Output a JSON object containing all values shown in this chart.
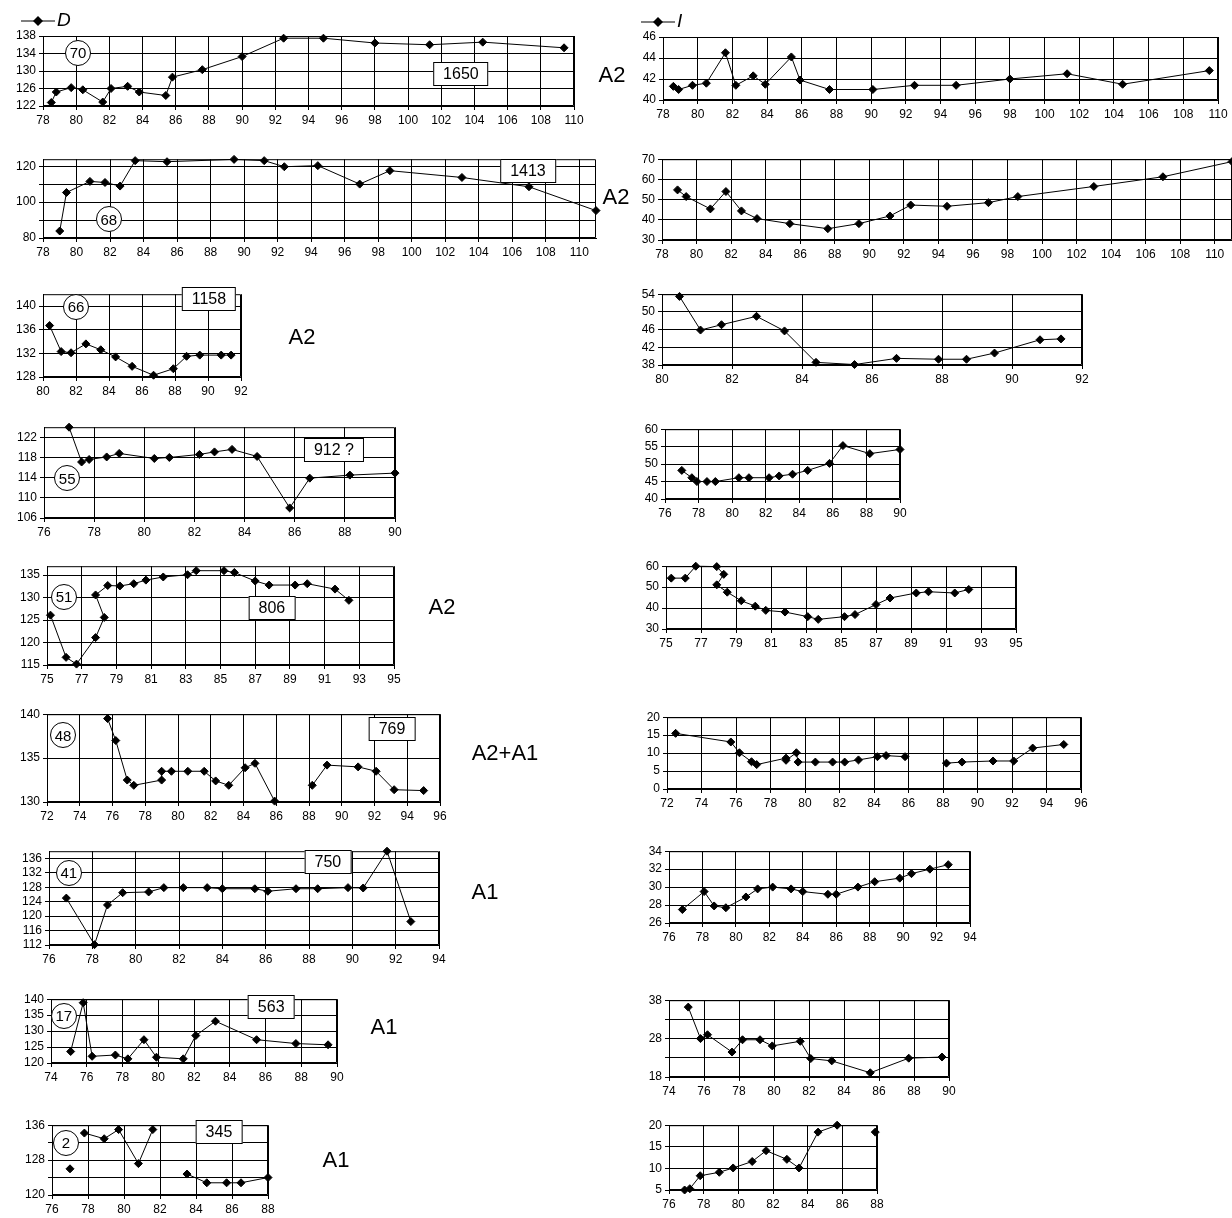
{
  "chart_data": [
    {
      "type": "line",
      "x": [
        78.5,
        78.8,
        79.7,
        80.4,
        81.6,
        82.1,
        83.1,
        83.8,
        85.4,
        85.8,
        87.6,
        90.0,
        92.5,
        94.9,
        98.0,
        101.3,
        104.5,
        109.4
      ],
      "series": [
        {
          "name": "D",
          "color": "#000000",
          "values": [
            122.8,
            125.2,
            126.2,
            125.7,
            122.9,
            126.0,
            126.5,
            125.2,
            124.4,
            128.6,
            130.3,
            133.3,
            137.5,
            137.5,
            136.4,
            136.0,
            136.6,
            135.3
          ]
        }
      ],
      "xlim": [
        78,
        110
      ],
      "xticks": [
        78,
        80,
        82,
        84,
        86,
        88,
        90,
        92,
        94,
        96,
        98,
        100,
        102,
        104,
        106,
        108,
        110
      ],
      "ylim": [
        122,
        138
      ],
      "yticks": [
        122,
        126,
        130,
        134,
        138
      ],
      "grid": true,
      "marker": "diamond",
      "legend": "top left",
      "annotations": [
        "70",
        "1650",
        "A2"
      ]
    },
    {
      "type": "line",
      "x": [
        78.6,
        78.9,
        79.7,
        80.5,
        81.6,
        82.2,
        83.2,
        83.9,
        85.4,
        85.9,
        87.6,
        90.1,
        92.5,
        94.9,
        98.0,
        101.3,
        104.5,
        109.5
      ],
      "series": [
        {
          "name": "I",
          "color": "#000000",
          "values": [
            41.3,
            41.0,
            41.4,
            41.6,
            44.5,
            41.4,
            42.3,
            41.5,
            44.1,
            41.9,
            41.0,
            41.0,
            41.4,
            41.4,
            42.0,
            42.5,
            41.5,
            42.8
          ]
        }
      ],
      "xlim": [
        78,
        110
      ],
      "xticks": [
        78,
        80,
        82,
        84,
        86,
        88,
        90,
        92,
        94,
        96,
        98,
        100,
        102,
        104,
        106,
        108,
        110
      ],
      "ylim": [
        40,
        46
      ],
      "yticks": [
        40,
        42,
        44,
        46
      ],
      "grid": true,
      "marker": "diamond",
      "legend": "top left"
    },
    {
      "type": "line",
      "x": [
        79.0,
        79.4,
        80.8,
        81.7,
        82.6,
        83.5,
        85.4,
        89.4,
        91.2,
        92.4,
        94.4,
        96.9,
        98.7,
        103.0,
        107.0,
        111.0
      ],
      "series": [
        {
          "color": "#000000",
          "values": [
            83.9,
            105.4,
            111.6,
            111.0,
            109.0,
            123.2,
            122.6,
            123.9,
            123.2,
            119.8,
            120.4,
            110.1,
            117.6,
            113.8,
            108.6,
            95.3
          ]
        }
      ],
      "xlim": [
        78,
        111
      ],
      "xticks": [
        78,
        80,
        82,
        84,
        86,
        88,
        90,
        92,
        94,
        96,
        98,
        100,
        102,
        104,
        106,
        108,
        110
      ],
      "ylim": [
        80,
        124
      ],
      "yticks": [
        80,
        {
          "value": 90,
          "label": null
        },
        100,
        {
          "value": 110,
          "label": null
        },
        120
      ],
      "grid": true,
      "marker": "diamond",
      "annotations": [
        "68",
        "1413",
        "A2"
      ]
    },
    {
      "type": "line",
      "x": [
        78.9,
        79.4,
        80.8,
        81.7,
        82.6,
        83.5,
        85.4,
        87.6,
        89.4,
        91.2,
        92.4,
        94.5,
        96.9,
        98.6,
        103.0,
        107.0,
        111.0
      ],
      "series": [
        {
          "color": "#000000",
          "values": [
            54.8,
            51.5,
            45.4,
            54.0,
            44.4,
            40.6,
            38.1,
            35.6,
            38.1,
            41.9,
            47.3,
            46.7,
            48.5,
            51.5,
            56.5,
            61.3,
            68.8
          ]
        }
      ],
      "xlim": [
        78,
        111
      ],
      "xticks": [
        78,
        80,
        82,
        84,
        86,
        88,
        90,
        92,
        94,
        96,
        98,
        100,
        102,
        104,
        106,
        108,
        110
      ],
      "ylim": [
        30,
        70
      ],
      "yticks": [
        30,
        40,
        50,
        60,
        70
      ],
      "grid": true,
      "marker": "diamond"
    },
    {
      "type": "line",
      "x": [
        80.4,
        81.1,
        81.7,
        82.6,
        83.5,
        84.4,
        85.4,
        86.7,
        87.9,
        88.7,
        89.5,
        90.8,
        91.4
      ],
      "series": [
        {
          "color": "#000000",
          "values": [
            136.7,
            132.3,
            132.1,
            133.6,
            132.6,
            131.4,
            129.8,
            128.3,
            129.4,
            131.5,
            131.7,
            131.7,
            131.7
          ]
        }
      ],
      "xlim": [
        80,
        92
      ],
      "xticks": [
        80,
        82,
        84,
        86,
        88,
        90,
        92
      ],
      "ylim": [
        128,
        142
      ],
      "yticks": [
        128,
        132,
        136,
        140
      ],
      "grid": true,
      "marker": "diamond",
      "annotations": [
        "66",
        "1158",
        "A2"
      ]
    },
    {
      "type": "line",
      "x": [
        80.5,
        81.1,
        81.7,
        82.7,
        83.5,
        84.4,
        85.5,
        86.7,
        87.9,
        88.7,
        89.5,
        90.8,
        91.4
      ],
      "series": [
        {
          "color": "#000000",
          "values": [
            53.5,
            45.9,
            47.1,
            49.0,
            45.7,
            38.6,
            38.1,
            39.5,
            39.3,
            39.3,
            40.7,
            43.7,
            43.9
          ]
        }
      ],
      "xlim": [
        80,
        92
      ],
      "xticks": [
        80,
        82,
        84,
        86,
        88,
        90,
        92
      ],
      "ylim": [
        38,
        54
      ],
      "yticks": [
        38,
        42,
        46,
        50,
        54
      ],
      "grid": true,
      "marker": "diamond"
    },
    {
      "type": "line",
      "x": [
        77.0,
        77.5,
        77.8,
        78.5,
        79.0,
        80.4,
        81.0,
        82.2,
        82.8,
        83.5,
        84.5,
        85.8,
        86.6,
        88.2,
        90.0
      ],
      "series": [
        {
          "color": "#000000",
          "values": [
            124.0,
            117.1,
            117.6,
            118.1,
            118.8,
            117.8,
            118.0,
            118.6,
            119.1,
            119.6,
            118.2,
            108.0,
            113.9,
            114.5,
            114.9
          ]
        }
      ],
      "xlim": [
        76,
        90
      ],
      "xticks": [
        76,
        78,
        80,
        82,
        84,
        86,
        88,
        90
      ],
      "ylim": [
        106,
        124
      ],
      "yticks": [
        106,
        110,
        114,
        118,
        122
      ],
      "grid": true,
      "marker": "diamond",
      "annotations": [
        "55",
        "912 ?"
      ]
    },
    {
      "type": "line",
      "x": [
        77.0,
        77.6,
        77.9,
        78.5,
        79.0,
        80.4,
        81.0,
        82.2,
        82.8,
        83.6,
        84.5,
        85.8,
        86.6,
        88.2,
        90.0
      ],
      "series": [
        {
          "color": "#000000",
          "values": [
            48.2,
            46.1,
            45.0,
            45.0,
            45.0,
            46.1,
            46.1,
            46.1,
            46.6,
            47.1,
            48.2,
            50.2,
            55.3,
            53.0,
            54.2
          ]
        }
      ],
      "xlim": [
        76,
        90
      ],
      "xticks": [
        76,
        78,
        80,
        82,
        84,
        86,
        88,
        90
      ],
      "ylim": [
        40,
        60
      ],
      "yticks": [
        40,
        45,
        50,
        55,
        60
      ],
      "grid": true,
      "marker": "diamond"
    },
    {
      "type": "line",
      "x": [
        75.2,
        76.1,
        76.7,
        77.8,
        78.3,
        77.8,
        78.5,
        79.2,
        80.0,
        80.7,
        81.7,
        83.1,
        83.6,
        85.2,
        85.8,
        87.0,
        87.8,
        89.3,
        90.0,
        91.6,
        92.4
      ],
      "series": [
        {
          "color": "#000000",
          "values": [
            126.1,
            116.7,
            115.2,
            121.1,
            125.6,
            130.6,
            132.7,
            132.6,
            133.1,
            133.9,
            134.6,
            135.1,
            136.0,
            136.0,
            135.6,
            133.7,
            132.8,
            132.8,
            133.1,
            131.9,
            129.4
          ]
        }
      ],
      "xlim": [
        75,
        95
      ],
      "xticks": [
        75,
        77,
        79,
        81,
        83,
        85,
        87,
        89,
        91,
        93,
        95
      ],
      "ylim": [
        115,
        137
      ],
      "yticks": [
        115,
        120,
        125,
        130,
        135
      ],
      "grid": true,
      "marker": "diamond",
      "annotations": [
        "51",
        "806",
        "A2"
      ]
    },
    {
      "type": "line",
      "x": [
        75.3,
        76.1,
        76.7,
        77.9,
        78.3,
        77.9,
        78.5,
        79.3,
        80.1,
        80.7,
        81.8,
        83.1,
        83.7,
        85.2,
        85.8,
        87.0,
        87.8,
        89.3,
        90.0,
        91.5,
        92.3
      ],
      "series": [
        {
          "color": "#000000",
          "values": [
            54.3,
            54.3,
            60.0,
            59.8,
            56.1,
            51.1,
            47.6,
            43.5,
            40.9,
            38.9,
            38.1,
            35.9,
            34.6,
            35.9,
            36.9,
            41.7,
            44.8,
            47.2,
            47.8,
            47.2,
            48.9
          ]
        }
      ],
      "xlim": [
        75,
        95
      ],
      "xticks": [
        75,
        77,
        79,
        81,
        83,
        85,
        87,
        89,
        91,
        93,
        95
      ],
      "ylim": [
        30,
        60
      ],
      "yticks": [
        30,
        40,
        50,
        60
      ],
      "grid": true,
      "marker": "diamond"
    },
    {
      "type": "line",
      "x": [
        75.7,
        76.2,
        76.9,
        77.3,
        79.0,
        79.0,
        79.6,
        80.6,
        81.6,
        82.3,
        83.1,
        84.1,
        84.7,
        85.9,
        87.0,
        88.2,
        89.1,
        91.0,
        92.1,
        93.2,
        95.0
      ],
      "series": [
        {
          "color": "#000000",
          "values": [
            139.5,
            137.0,
            132.5,
            131.9,
            132.5,
            133.5,
            133.5,
            133.5,
            133.5,
            132.4,
            131.9,
            133.9,
            134.4,
            130.1,
            null,
            131.9,
            134.2,
            134.0,
            133.5,
            131.4,
            131.3
          ]
        }
      ],
      "xlim": [
        72,
        96
      ],
      "xticks": [
        72,
        74,
        76,
        78,
        80,
        82,
        84,
        86,
        88,
        90,
        92,
        94,
        96
      ],
      "ylim": [
        130,
        140
      ],
      "yticks": [
        130,
        135,
        140
      ],
      "grid": true,
      "marker": "diamond",
      "annotations": [
        "48",
        "769",
        "A2+A1"
      ]
    },
    {
      "type": "line",
      "x": [
        72.5,
        75.7,
        76.2,
        76.9,
        77.2,
        78.9,
        78.9,
        79.5,
        79.6,
        80.6,
        81.6,
        82.3,
        83.1,
        84.2,
        84.7,
        85.8,
        87.0,
        88.2,
        89.1,
        90.9,
        92.1,
        93.2,
        95.0
      ],
      "series": [
        {
          "color": "#000000",
          "values": [
            15.5,
            13.1,
            10.1,
            7.6,
            6.8,
            8.6,
            8.0,
            10.1,
            7.5,
            7.5,
            7.5,
            7.5,
            8.1,
            9.0,
            9.3,
            9.0,
            null,
            7.2,
            7.5,
            7.8,
            7.8,
            11.4,
            12.4
          ]
        }
      ],
      "xlim": [
        72,
        96
      ],
      "xticks": [
        72,
        74,
        76,
        78,
        80,
        82,
        84,
        86,
        88,
        90,
        92,
        94,
        96
      ],
      "ylim": [
        0,
        20
      ],
      "yticks": [
        0,
        5,
        10,
        15,
        20
      ],
      "grid": true,
      "marker": "diamond"
    },
    {
      "type": "line",
      "x": [
        76.8,
        78.1,
        78.7,
        79.4,
        80.6,
        81.3,
        82.2,
        83.3,
        84.0,
        85.5,
        86.1,
        87.4,
        88.4,
        89.8,
        90.5,
        91.6,
        92.7
      ],
      "series": [
        {
          "color": "#000000",
          "values": [
            125.0,
            112.1,
            123.1,
            126.5,
            126.7,
            127.9,
            127.9,
            127.9,
            127.6,
            127.6,
            126.9,
            127.6,
            127.6,
            127.9,
            127.8,
            138.0,
            118.5
          ]
        }
      ],
      "xlim": [
        76,
        94
      ],
      "xticks": [
        76,
        78,
        80,
        82,
        84,
        86,
        88,
        90,
        92,
        94
      ],
      "ylim": [
        112,
        138
      ],
      "yticks": [
        112,
        116,
        120,
        124,
        128,
        132,
        136
      ],
      "grid": true,
      "marker": "diamond",
      "annotations": [
        "41",
        "750",
        "A1"
      ]
    },
    {
      "type": "line",
      "x": [
        76.8,
        78.1,
        78.7,
        79.4,
        80.6,
        81.3,
        82.2,
        83.3,
        84.0,
        85.5,
        86.0,
        87.3,
        88.3,
        89.8,
        90.5,
        91.6,
        92.7
      ],
      "series": [
        {
          "color": "#000000",
          "values": [
            27.5,
            29.5,
            27.9,
            27.7,
            28.9,
            29.8,
            30.0,
            29.8,
            29.5,
            29.2,
            29.2,
            30.0,
            30.6,
            31.0,
            31.5,
            32.0,
            32.5
          ]
        }
      ],
      "xlim": [
        76,
        94
      ],
      "xticks": [
        76,
        78,
        80,
        82,
        84,
        86,
        88,
        90,
        92,
        94
      ],
      "ylim": [
        26,
        34
      ],
      "yticks": [
        26,
        28,
        30,
        32,
        34
      ],
      "grid": true,
      "marker": "diamond"
    },
    {
      "type": "line",
      "x": [
        75.1,
        75.8,
        76.3,
        77.6,
        78.3,
        79.2,
        79.9,
        81.4,
        82.1,
        83.2,
        85.5,
        87.7,
        89.5
      ],
      "series": [
        {
          "color": "#000000",
          "values": [
            123.6,
            138.9,
            122.1,
            122.5,
            121.3,
            127.3,
            121.8,
            121.3,
            128.6,
            133.1,
            127.3,
            126.1,
            125.7
          ]
        }
      ],
      "xlim": [
        74,
        90
      ],
      "xticks": [
        74,
        76,
        78,
        80,
        82,
        84,
        86,
        88,
        90
      ],
      "ylim": [
        120,
        140
      ],
      "yticks": [
        120,
        125,
        130,
        135,
        140
      ],
      "grid": true,
      "marker": "diamond",
      "annotations": [
        "17",
        "563",
        "A1"
      ]
    },
    {
      "type": "line",
      "x": [
        75.1,
        75.8,
        76.2,
        77.6,
        78.2,
        79.2,
        79.9,
        81.5,
        82.1,
        83.3,
        85.5,
        87.7,
        89.6
      ],
      "series": [
        {
          "color": "#000000",
          "values": [
            36.2,
            28.0,
            29.0,
            24.5,
            27.7,
            27.7,
            26.1,
            27.3,
            22.8,
            22.2,
            19.1,
            22.9,
            23.2
          ]
        }
      ],
      "xlim": [
        74,
        90
      ],
      "xticks": [
        74,
        76,
        78,
        80,
        82,
        84,
        86,
        88,
        90
      ],
      "ylim": [
        18,
        38
      ],
      "yticks": [
        18,
        {
          "value": 23,
          "label": null
        },
        28,
        {
          "value": 33,
          "label": null
        },
        38
      ],
      "grid": true,
      "marker": "diamond"
    },
    {
      "type": "line",
      "x": [
        77.0,
        77.4,
        77.8,
        78.9,
        79.7,
        80.8,
        81.6,
        82.5,
        83.5,
        84.6,
        85.7,
        86.5,
        88.0
      ],
      "series": [
        {
          "color": "#000000",
          "values": [
            126.0,
            null,
            134.2,
            132.9,
            135.0,
            127.2,
            135.0,
            null,
            124.8,
            122.8,
            122.8,
            122.8,
            124.0
          ]
        }
      ],
      "xlim": [
        76,
        88
      ],
      "xticks": [
        76,
        78,
        80,
        82,
        84,
        86,
        88
      ],
      "ylim": [
        120,
        136
      ],
      "yticks": [
        120,
        {
          "value": 124,
          "label": null
        },
        128,
        {
          "value": 132,
          "label": null
        },
        136
      ],
      "grid": true,
      "marker": "diamond",
      "annotations": [
        "2",
        "345",
        "A1"
      ]
    },
    {
      "type": "line",
      "x": [
        76.9,
        77.2,
        77.8,
        78.9,
        79.7,
        80.8,
        81.6,
        82.8,
        83.5,
        84.6,
        85.7,
        86.8,
        87.9
      ],
      "series": [
        {
          "color": "#000000",
          "values": [
            5.0,
            5.3,
            8.3,
            9.1,
            10.1,
            11.6,
            14.1,
            12.1,
            10.1,
            18.4,
            20.0,
            null,
            18.4
          ]
        }
      ],
      "xlim": [
        76,
        88
      ],
      "xticks": [
        76,
        78,
        80,
        82,
        84,
        86,
        88
      ],
      "ylim": [
        5,
        20
      ],
      "yticks": [
        5,
        10,
        15,
        20
      ],
      "grid": true,
      "marker": "diamond"
    }
  ]
}
